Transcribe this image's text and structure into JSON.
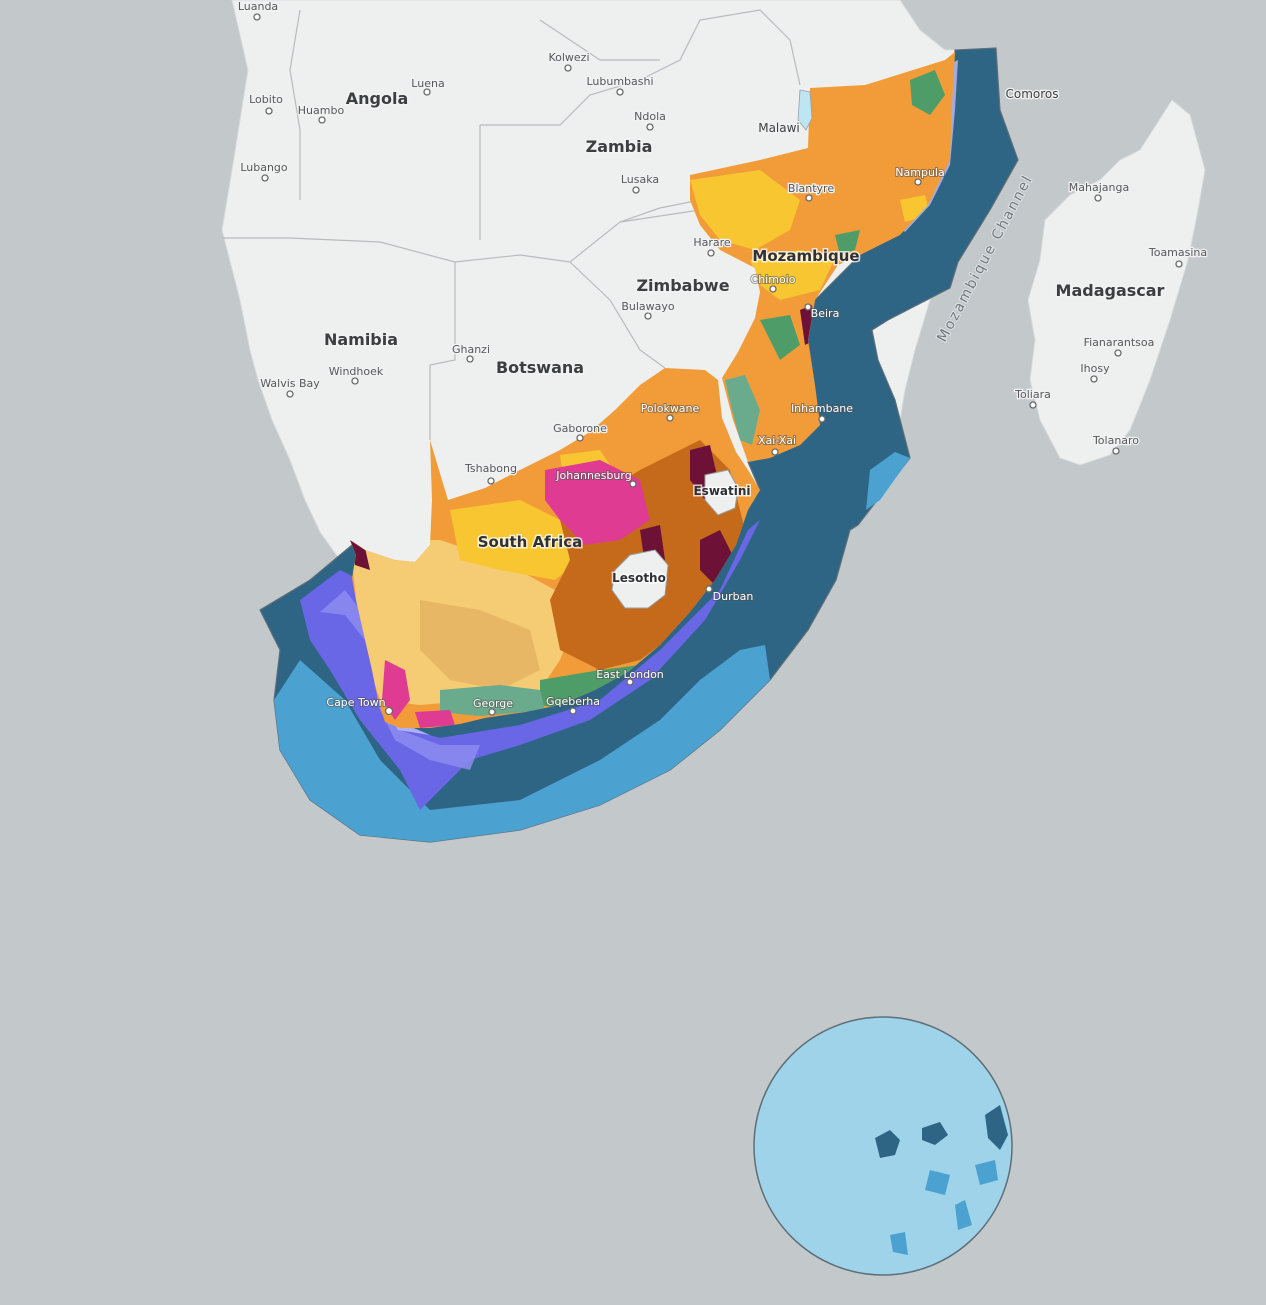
{
  "map": {
    "countries": [
      {
        "id": "angola",
        "label": "Angola"
      },
      {
        "id": "zambia",
        "label": "Zambia"
      },
      {
        "id": "zimbabwe",
        "label": "Zimbabwe"
      },
      {
        "id": "namibia",
        "label": "Namibia"
      },
      {
        "id": "botswana",
        "label": "Botswana"
      },
      {
        "id": "mozambique",
        "label": "Mozambique"
      },
      {
        "id": "madagascar",
        "label": "Madagascar"
      },
      {
        "id": "south-africa",
        "label": "South Africa"
      },
      {
        "id": "lesotho",
        "label": "Lesotho"
      },
      {
        "id": "eswatini",
        "label": "Eswatini"
      },
      {
        "id": "malawi",
        "label": "Malawi"
      },
      {
        "id": "comoros",
        "label": "Comoros"
      }
    ],
    "cities": [
      {
        "id": "luanda",
        "label": "Luanda"
      },
      {
        "id": "lobito",
        "label": "Lobito"
      },
      {
        "id": "luena",
        "label": "Luena"
      },
      {
        "id": "huambo",
        "label": "Huambo"
      },
      {
        "id": "lubango",
        "label": "Lubango"
      },
      {
        "id": "kolwezi",
        "label": "Kolwezi"
      },
      {
        "id": "lubumbashi",
        "label": "Lubumbashi"
      },
      {
        "id": "ndola",
        "label": "Ndola"
      },
      {
        "id": "lusaka",
        "label": "Lusaka"
      },
      {
        "id": "harare",
        "label": "Harare"
      },
      {
        "id": "bulawayo",
        "label": "Bulawayo"
      },
      {
        "id": "blantyre",
        "label": "Blantyre"
      },
      {
        "id": "nampula",
        "label": "Nampula"
      },
      {
        "id": "chimoio",
        "label": "Chimoio"
      },
      {
        "id": "beira",
        "label": "Beira"
      },
      {
        "id": "inhambane",
        "label": "Inhambane"
      },
      {
        "id": "xai-xai",
        "label": "Xai-Xai"
      },
      {
        "id": "windhoek",
        "label": "Windhoek"
      },
      {
        "id": "walvis-bay",
        "label": "Walvis Bay"
      },
      {
        "id": "ghanzi",
        "label": "Ghanzi"
      },
      {
        "id": "gaborone",
        "label": "Gaborone"
      },
      {
        "id": "polokwane",
        "label": "Polokwane"
      },
      {
        "id": "tshabong",
        "label": "Tshabong"
      },
      {
        "id": "johannesburg",
        "label": "Johannesburg"
      },
      {
        "id": "durban",
        "label": "Durban"
      },
      {
        "id": "east-london",
        "label": "East London"
      },
      {
        "id": "gqeberha",
        "label": "Gqeberha"
      },
      {
        "id": "george",
        "label": "George"
      },
      {
        "id": "cape-town",
        "label": "Cape Town"
      },
      {
        "id": "mahajanga",
        "label": "Mahajanga"
      },
      {
        "id": "toamasina",
        "label": "Toamasina"
      },
      {
        "id": "fianarantsoa",
        "label": "Fianarantsoa"
      },
      {
        "id": "ihosy",
        "label": "Ihosy"
      },
      {
        "id": "toliara",
        "label": "Toliara"
      },
      {
        "id": "tolanaro",
        "label": "Tolanaro"
      }
    ],
    "seas": [
      {
        "id": "mozambique-channel",
        "label": "Mozambique Channel"
      }
    ],
    "colors": {
      "ocean_background": "#c3c8cb",
      "land_base": "#eef0f0",
      "land_border": "#b7bbbe",
      "eez_deep": "#2e6585",
      "marine_mid": "#4ba1d0",
      "marine_light": "#9fd3ea",
      "marine_shelf_purple": "#6967e6",
      "marine_shelf_lavender": "#8d8cf0",
      "orange": "#f19c38",
      "yellow": "#f8c630",
      "sand": "#f5cb73",
      "tan": "#e8b766",
      "brown": "#c56a1a",
      "magenta": "#df3b92",
      "maroon": "#6d1236",
      "green": "#4e9d69",
      "teal": "#6aaa8d"
    }
  }
}
